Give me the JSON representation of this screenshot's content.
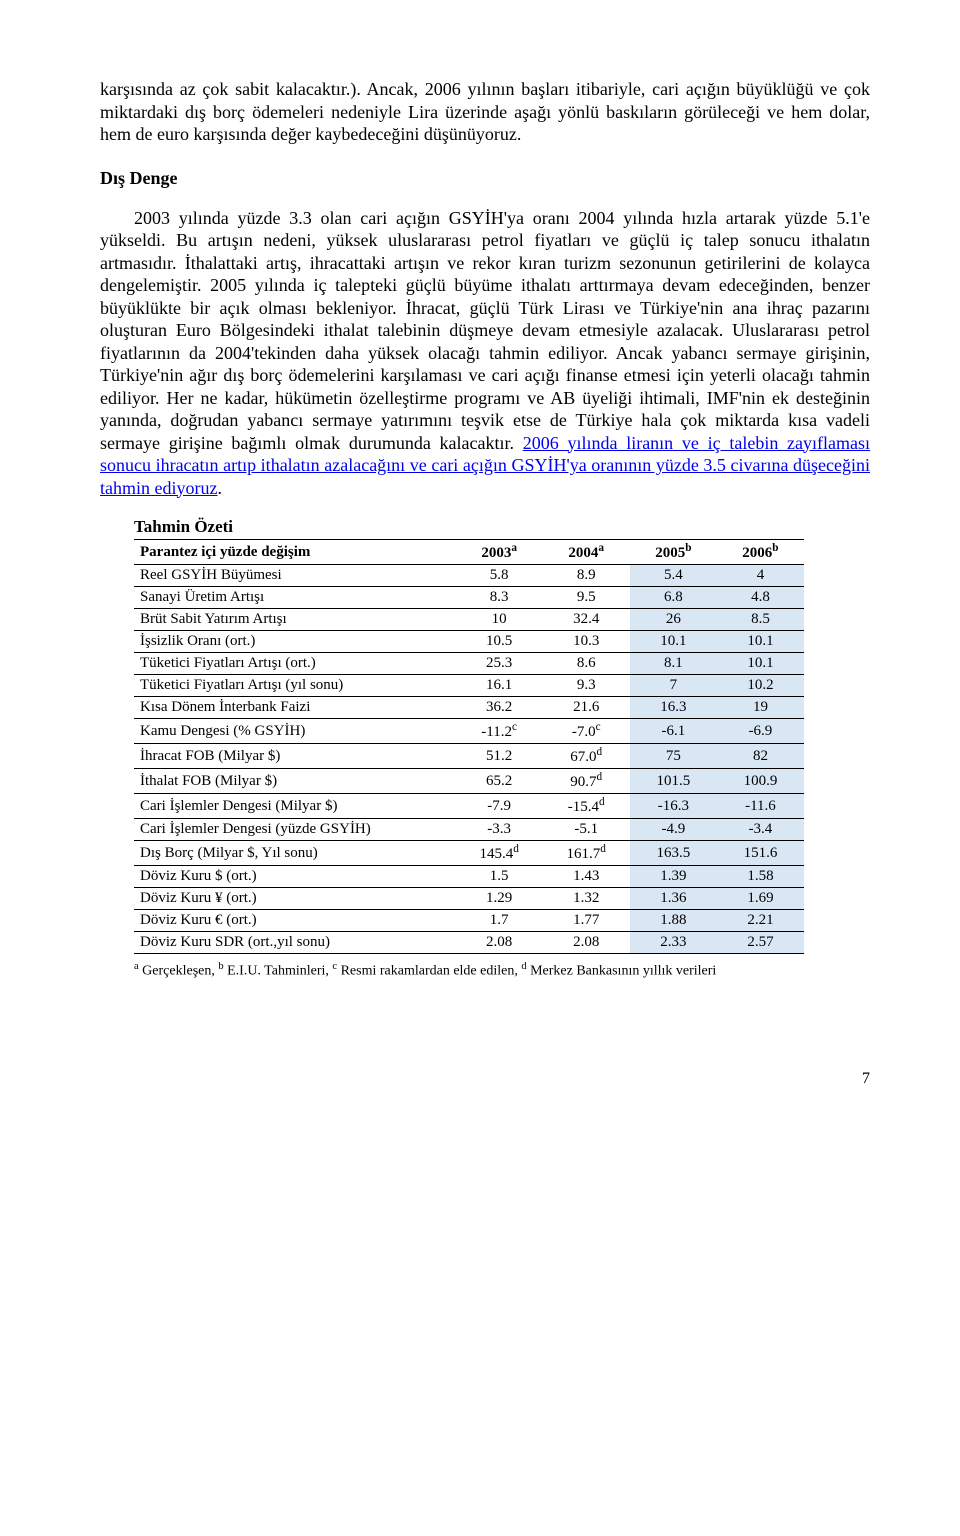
{
  "para1_a": "karşısında az çok sabit kalacaktır.). Ancak, 2006 yılının başları itibariyle, cari açığın büyüklüğü ve çok miktardaki dış borç ödemeleri nedeniyle Lira üzerinde aşağı yönlü baskıların görüleceği ve hem dolar, hem de euro karşısında değer kaybedeceğini düşünüyoruz.",
  "heading": "Dış Denge",
  "para2_a": "2003 yılında yüzde 3.3 olan cari açığın GSYİH'ya oranı 2004 yılında hızla artarak yüzde 5.1'e yükseldi. Bu artışın nedeni, yüksek uluslararası petrol fiyatları ve güçlü iç talep sonucu ithalatın artmasıdır. İthalattaki artış, ihracattaki artışın ve rekor kıran turizm sezonunun getirilerini de kolayca dengelemiştir. 2005 yılında iç talepteki güçlü büyüme ithalatı arttırmaya devam edeceğinden, benzer büyüklükte bir açık olması bekleniyor. İhracat, güçlü Türk Lirası ve Türkiye'nin ana ihraç pazarını oluşturan Euro Bölgesindeki ithalat talebinin düşmeye devam etmesiyle azalacak. Uluslararası petrol fiyatlarının da 2004'tekinden daha yüksek olacağı tahmin ediliyor. Ancak yabancı sermaye girişinin, Türkiye'nin ağır dış borç ödemelerini karşılaması ve cari açığı finanse etmesi için yeterli olacağı tahmin ediliyor. Her ne kadar, hükümetin özelleştirme programı ve AB üyeliği ihtimali, IMF'nin ek desteğinin yanında, doğrudan yabancı sermaye yatırımını teşvik etse de Türkiye hala çok miktarda kısa vadeli sermaye girişine bağımlı olmak durumunda kalacaktır. ",
  "para2_link": "2006 yılında liranın ve iç talebin zayıflaması sonucu ihracatın artıp ithalatın azalacağını ve cari açığın GSYİH'ya oranının yüzde 3.5 civarına düşeceğini tahmin ediyoruz",
  "para2_b": ".",
  "table": {
    "title": "Tahmin Özeti",
    "header_label": "Parantez içi yüzde değişim",
    "years": [
      "2003",
      "2004",
      "2005",
      "2006"
    ],
    "year_sup": [
      "a",
      "a",
      "b",
      "b"
    ],
    "col_class": [
      "col-hist",
      "col-hist",
      "col-fcst",
      "col-fcst"
    ],
    "rows": [
      {
        "label": "Reel GSYİH Büyümesi",
        "vals": [
          "5.8",
          "8.9",
          "5.4",
          "4"
        ],
        "sup": [
          "",
          "",
          "",
          ""
        ]
      },
      {
        "label": "Sanayi Üretim Artışı",
        "vals": [
          "8.3",
          "9.5",
          "6.8",
          "4.8"
        ],
        "sup": [
          "",
          "",
          "",
          ""
        ]
      },
      {
        "label": "Brüt Sabit Yatırım Artışı",
        "vals": [
          "10",
          "32.4",
          "26",
          "8.5"
        ],
        "sup": [
          "",
          "",
          "",
          ""
        ]
      },
      {
        "label": "İşsizlik Oranı (ort.)",
        "vals": [
          "10.5",
          "10.3",
          "10.1",
          "10.1"
        ],
        "sup": [
          "",
          "",
          "",
          ""
        ]
      },
      {
        "label": "Tüketici Fiyatları Artışı (ort.)",
        "vals": [
          "25.3",
          "8.6",
          "8.1",
          "10.1"
        ],
        "sup": [
          "",
          "",
          "",
          ""
        ]
      },
      {
        "label": "Tüketici Fiyatları Artışı (yıl sonu)",
        "vals": [
          "16.1",
          "9.3",
          "7",
          "10.2"
        ],
        "sup": [
          "",
          "",
          "",
          ""
        ]
      },
      {
        "label": "Kısa Dönem İnterbank Faizi",
        "vals": [
          "36.2",
          "21.6",
          "16.3",
          "19"
        ],
        "sup": [
          "",
          "",
          "",
          ""
        ]
      },
      {
        "label": "Kamu Dengesi (% GSYİH)",
        "vals": [
          "-11.2",
          "-7.0",
          "-6.1",
          "-6.9"
        ],
        "sup": [
          "c",
          "c",
          "",
          ""
        ]
      },
      {
        "label": "İhracat FOB (Milyar $)",
        "vals": [
          "51.2",
          "67.0",
          "75",
          "82"
        ],
        "sup": [
          "",
          "d",
          "",
          ""
        ]
      },
      {
        "label": "İthalat FOB (Milyar $)",
        "vals": [
          "65.2",
          "90.7",
          "101.5",
          "100.9"
        ],
        "sup": [
          "",
          "d",
          "",
          ""
        ]
      },
      {
        "label": "Cari İşlemler Dengesi (Milyar $)",
        "vals": [
          "-7.9",
          "-15.4",
          "-16.3",
          "-11.6"
        ],
        "sup": [
          "",
          "d",
          "",
          ""
        ]
      },
      {
        "label": "Cari İşlemler Dengesi (yüzde GSYİH)",
        "vals": [
          "-3.3",
          "-5.1",
          "-4.9",
          "-3.4"
        ],
        "sup": [
          "",
          "",
          "",
          ""
        ]
      },
      {
        "label": "Dış Borç (Milyar $, Yıl sonu)",
        "vals": [
          "145.4",
          "161.7",
          "163.5",
          "151.6"
        ],
        "sup": [
          "d",
          "d",
          "",
          ""
        ]
      },
      {
        "label": "Döviz Kuru $ (ort.)",
        "vals": [
          "1.5",
          "1.43",
          "1.39",
          "1.58"
        ],
        "sup": [
          "",
          "",
          "",
          ""
        ]
      },
      {
        "label": "Döviz Kuru ¥ (ort.)",
        "vals": [
          "1.29",
          "1.32",
          "1.36",
          "1.69"
        ],
        "sup": [
          "",
          "",
          "",
          ""
        ]
      },
      {
        "label": "Döviz Kuru € (ort.)",
        "vals": [
          "1.7",
          "1.77",
          "1.88",
          "2.21"
        ],
        "sup": [
          "",
          "",
          "",
          ""
        ]
      },
      {
        "label": "Döviz Kuru SDR (ort.,yıl sonu)",
        "vals": [
          "2.08",
          "2.08",
          "2.33",
          "2.57"
        ],
        "sup": [
          "",
          "",
          "",
          ""
        ]
      }
    ],
    "footnote_parts": {
      "a_sup": "a",
      "a_txt": " Gerçekleşen, ",
      "b_sup": "b",
      "b_txt": " E.I.U. Tahminleri, ",
      "c_sup": "c",
      "c_txt": "  Resmi rakamlardan elde edilen, ",
      "d_sup": "d",
      "d_txt": "  Merkez Bankasının yıllık verileri"
    }
  },
  "pagenum": "7"
}
